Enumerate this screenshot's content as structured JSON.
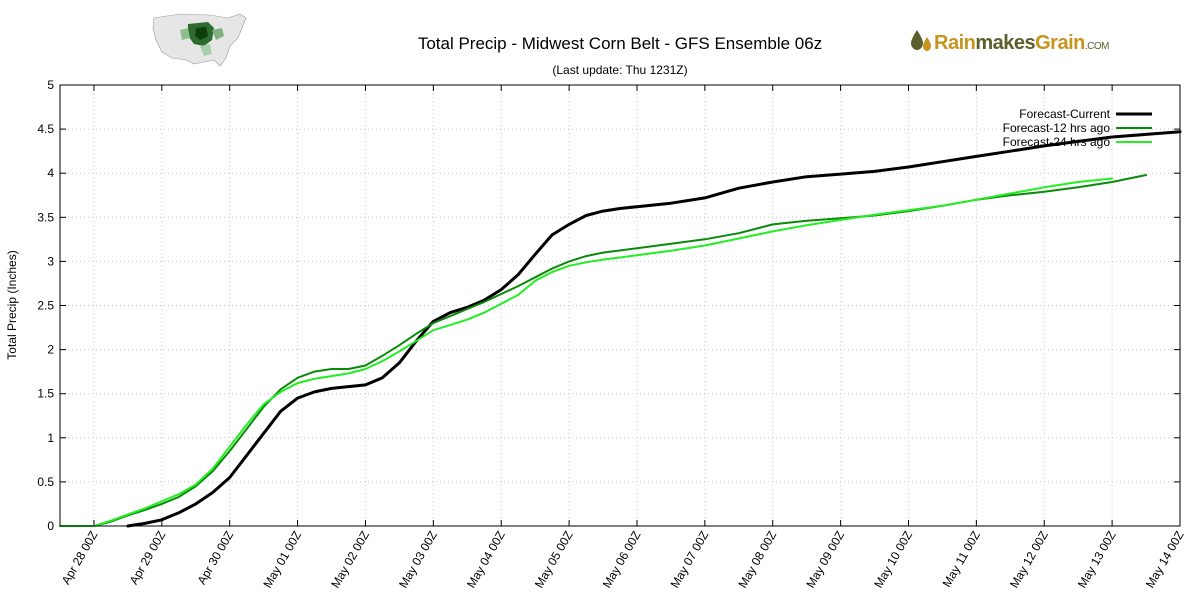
{
  "header": {
    "title": "Total Precip - Midwest Corn Belt - GFS Ensemble 06z",
    "subtitle": "(Last update: Thu 1231Z)"
  },
  "logo": {
    "part1": "Rain",
    "part2": "makes",
    "part3": "Grain",
    "suffix": ".COM",
    "icon": "raindrop-icon"
  },
  "map": {
    "icon": "us-map-icon"
  },
  "colors": {
    "current": "#000000",
    "h12": "#0a8a0a",
    "h24": "#22ee22",
    "grid": "#c8c8c8"
  },
  "chart_data": {
    "type": "line",
    "ylabel": "Total Precip (Inches)",
    "xlabel": "",
    "ylim": [
      0,
      5
    ],
    "xlim": [
      0,
      16.5
    ],
    "yticks": [
      0,
      0.5,
      1,
      1.5,
      2,
      2.5,
      3,
      3.5,
      4,
      4.5,
      5
    ],
    "ytick_labels": [
      "0",
      "0.5",
      "1",
      "1.5",
      "2",
      "2.5",
      "3",
      "3.5",
      "4",
      "4.5",
      "5"
    ],
    "xticks": [
      0.5,
      1.5,
      2.5,
      3.5,
      4.5,
      5.5,
      6.5,
      7.5,
      8.5,
      9.5,
      10.5,
      11.5,
      12.5,
      13.5,
      14.5,
      15.5,
      16.5
    ],
    "xtick_labels": [
      "Apr 28 00Z",
      "Apr 29 00Z",
      "Apr 30 00Z",
      "May 01 00Z",
      "May 02 00Z",
      "May 03 00Z",
      "May 04 00Z",
      "May 05 00Z",
      "May 06 00Z",
      "May 07 00Z",
      "May 08 00Z",
      "May 09 00Z",
      "May 10 00Z",
      "May 11 00Z",
      "May 12 00Z",
      "May 13 00Z",
      "May 14 00Z"
    ],
    "x_unit": "days (tick k = Apr 28 00Z + k-0.5)",
    "grid": true,
    "legend_position": "top-right",
    "series": [
      {
        "name": "Forecast-Current",
        "color": "#000000",
        "x": [
          1.0,
          1.25,
          1.5,
          1.75,
          2.0,
          2.25,
          2.5,
          2.75,
          3.0,
          3.25,
          3.5,
          3.75,
          4.0,
          4.25,
          4.5,
          4.75,
          5.0,
          5.25,
          5.5,
          5.75,
          6.0,
          6.25,
          6.5,
          6.75,
          7.0,
          7.25,
          7.5,
          7.75,
          8.0,
          8.25,
          8.5,
          8.75,
          9.0,
          9.5,
          10.0,
          10.5,
          11.0,
          11.5,
          12.0,
          12.5,
          13.0,
          13.5,
          14.0,
          14.5,
          15.0,
          15.5,
          16.0,
          16.5
        ],
        "values": [
          0.0,
          0.03,
          0.07,
          0.15,
          0.25,
          0.38,
          0.55,
          0.8,
          1.05,
          1.3,
          1.45,
          1.52,
          1.56,
          1.58,
          1.6,
          1.68,
          1.85,
          2.1,
          2.32,
          2.42,
          2.48,
          2.56,
          2.68,
          2.85,
          3.08,
          3.3,
          3.42,
          3.52,
          3.57,
          3.6,
          3.62,
          3.64,
          3.66,
          3.72,
          3.83,
          3.9,
          3.96,
          3.99,
          4.02,
          4.07,
          4.13,
          4.19,
          4.25,
          4.31,
          4.36,
          4.41,
          4.44,
          4.47
        ]
      },
      {
        "name": "Forecast-12 hrs ago",
        "color": "#0a8a0a",
        "x": [
          0.0,
          0.5,
          0.75,
          1.0,
          1.25,
          1.5,
          1.75,
          2.0,
          2.25,
          2.5,
          2.75,
          3.0,
          3.25,
          3.5,
          3.75,
          4.0,
          4.25,
          4.5,
          4.75,
          5.0,
          5.25,
          5.5,
          5.75,
          6.0,
          6.25,
          6.5,
          6.75,
          7.0,
          7.25,
          7.5,
          7.75,
          8.0,
          8.5,
          9.0,
          9.5,
          10.0,
          10.5,
          11.0,
          11.5,
          12.0,
          12.5,
          13.0,
          13.5,
          14.0,
          14.5,
          15.0,
          15.5,
          16.0
        ],
        "values": [
          0.0,
          0.0,
          0.05,
          0.12,
          0.18,
          0.25,
          0.33,
          0.45,
          0.62,
          0.85,
          1.1,
          1.35,
          1.55,
          1.68,
          1.75,
          1.78,
          1.78,
          1.82,
          1.93,
          2.05,
          2.18,
          2.3,
          2.38,
          2.46,
          2.54,
          2.63,
          2.72,
          2.82,
          2.92,
          3.0,
          3.06,
          3.1,
          3.15,
          3.2,
          3.25,
          3.32,
          3.42,
          3.46,
          3.49,
          3.52,
          3.57,
          3.63,
          3.7,
          3.75,
          3.79,
          3.84,
          3.9,
          3.98
        ]
      },
      {
        "name": "Forecast-24 hrs ago",
        "color": "#22ee22",
        "x": [
          0.0,
          0.5,
          0.75,
          1.0,
          1.25,
          1.5,
          1.75,
          2.0,
          2.25,
          2.5,
          2.75,
          3.0,
          3.25,
          3.5,
          3.75,
          4.0,
          4.25,
          4.5,
          4.75,
          5.0,
          5.25,
          5.5,
          5.75,
          6.0,
          6.25,
          6.5,
          6.75,
          7.0,
          7.25,
          7.5,
          7.75,
          8.0,
          8.5,
          9.0,
          9.5,
          10.0,
          10.5,
          11.0,
          11.5,
          12.0,
          12.5,
          13.0,
          13.5,
          14.0,
          14.5,
          15.0,
          15.5
        ],
        "values": [
          0.0,
          0.0,
          0.06,
          0.13,
          0.2,
          0.28,
          0.36,
          0.47,
          0.65,
          0.9,
          1.15,
          1.38,
          1.52,
          1.62,
          1.67,
          1.7,
          1.73,
          1.78,
          1.87,
          1.98,
          2.1,
          2.22,
          2.28,
          2.34,
          2.42,
          2.52,
          2.62,
          2.78,
          2.88,
          2.95,
          2.99,
          3.02,
          3.07,
          3.12,
          3.18,
          3.26,
          3.34,
          3.41,
          3.47,
          3.53,
          3.58,
          3.63,
          3.7,
          3.77,
          3.84,
          3.9,
          3.94
        ]
      }
    ]
  }
}
